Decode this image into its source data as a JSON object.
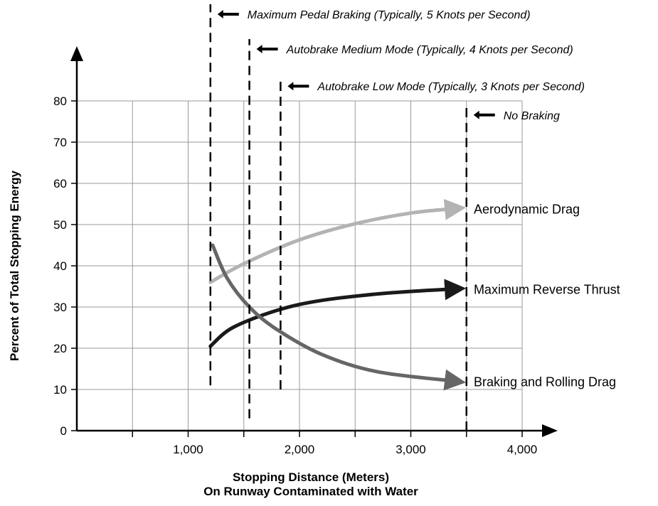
{
  "chart_data": {
    "type": "line",
    "xlabel": "Stopping Distance (Meters)",
    "xlabel_line2": "On Runway Contaminated with Water",
    "ylabel": "Percent of Total Stopping Energy",
    "xlim": [
      0,
      4000
    ],
    "ylim": [
      0,
      80
    ],
    "x_ticks": [
      1000,
      2000,
      3000,
      4000
    ],
    "x_tick_labels": [
      "1,000",
      "2,000",
      "3,000",
      "4,000"
    ],
    "y_ticks": [
      0,
      10,
      20,
      30,
      40,
      50,
      60,
      70,
      80
    ],
    "y_tick_labels": [
      "0",
      "10",
      "20",
      "30",
      "40",
      "50",
      "60",
      "70",
      "80"
    ],
    "grid": true,
    "series": [
      {
        "name": "Aerodynamic Drag",
        "color": "#b3b3b3",
        "points": [
          [
            1200,
            36
          ],
          [
            1500,
            40.5
          ],
          [
            2000,
            46.3
          ],
          [
            2500,
            50.2
          ],
          [
            3000,
            52.8
          ],
          [
            3400,
            53.9
          ]
        ]
      },
      {
        "name": "Maximum Reverse Thrust",
        "color": "#1a1a1a",
        "points": [
          [
            1200,
            20.5
          ],
          [
            1400,
            25
          ],
          [
            1800,
            29.2
          ],
          [
            2200,
            31.6
          ],
          [
            2800,
            33.4
          ],
          [
            3400,
            34.4
          ]
        ]
      },
      {
        "name": "Braking and Rolling Drag",
        "color": "#666666",
        "points": [
          [
            1220,
            45
          ],
          [
            1350,
            37
          ],
          [
            1550,
            30
          ],
          [
            1800,
            24.5
          ],
          [
            2200,
            18.5
          ],
          [
            2700,
            14.3
          ],
          [
            3400,
            12
          ]
        ]
      }
    ],
    "annotations": [
      {
        "text": "Maximum Pedal Braking (Typically, 5 Knots per Second)",
        "x": 1200,
        "y_from": 11,
        "y_to": 104
      },
      {
        "text": "Autobrake Medium Mode (Typically, 4 Knots per Second)",
        "x": 1550,
        "y_from": 3,
        "y_to": 95
      },
      {
        "text": "Autobrake Low Mode (Typically, 3 Knots per Second)",
        "x": 1830,
        "y_from": 10,
        "y_to": 86
      },
      {
        "text": "No Braking",
        "x": 3500,
        "y_from": 0,
        "y_to": 79
      }
    ]
  }
}
